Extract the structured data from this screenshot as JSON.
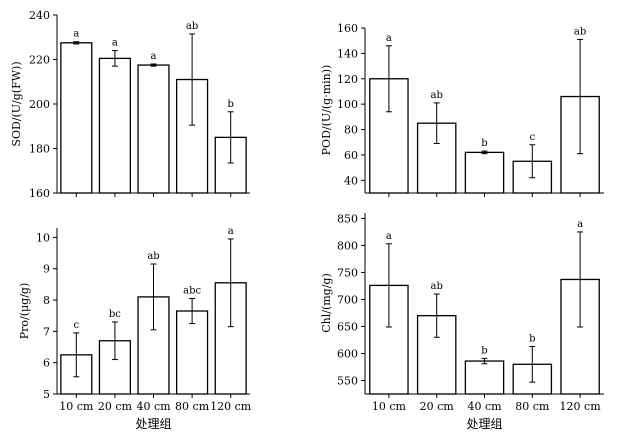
{
  "chart_data": [
    {
      "type": "bar",
      "ylabel": "SOD/(U/g(FW))",
      "xlabel": "",
      "categories": [
        "10 cm",
        "20 cm",
        "40 cm",
        "80 cm",
        "120 cm"
      ],
      "values": [
        227.5,
        220.5,
        217.5,
        211,
        185
      ],
      "errors": [
        0.5,
        3.5,
        0.5,
        20.5,
        11.5
      ],
      "letters": [
        "a",
        "a",
        "a",
        "ab",
        "b"
      ],
      "ylim": [
        160,
        240
      ],
      "yticks": [
        160,
        180,
        200,
        220,
        240
      ],
      "show_x_ticklabels": false
    },
    {
      "type": "bar",
      "ylabel": "POD/(U/(g·min))",
      "xlabel": "",
      "categories": [
        "10 cm",
        "20 cm",
        "40 cm",
        "80 cm",
        "120 cm"
      ],
      "values": [
        120,
        85,
        62,
        55,
        106
      ],
      "errors": [
        26,
        16,
        1,
        13,
        45
      ],
      "letters": [
        "a",
        "ab",
        "b",
        "c",
        "ab"
      ],
      "ylim": [
        30,
        160
      ],
      "yticks": [
        40,
        60,
        80,
        100,
        120,
        140,
        160
      ],
      "show_x_ticklabels": false
    },
    {
      "type": "bar",
      "ylabel": "Pro/(μg/g)",
      "xlabel": "处理组",
      "categories": [
        "10 cm",
        "20 cm",
        "40 cm",
        "80 cm",
        "120 cm"
      ],
      "values": [
        6.25,
        6.7,
        8.1,
        7.65,
        8.55
      ],
      "errors": [
        0.7,
        0.6,
        1.05,
        0.4,
        1.4
      ],
      "letters": [
        "c",
        "bc",
        "ab",
        "abc",
        "a"
      ],
      "ylim": [
        5,
        10.3
      ],
      "yticks": [
        5,
        6,
        7,
        8,
        9,
        10
      ],
      "show_x_ticklabels": true
    },
    {
      "type": "bar",
      "ylabel": "Chl/(mg/g)",
      "xlabel": "处理组",
      "categories": [
        "10 cm",
        "20 cm",
        "40 cm",
        "80 cm",
        "120 cm"
      ],
      "values": [
        726,
        670,
        586,
        580,
        737
      ],
      "errors": [
        77,
        40,
        5,
        33,
        88
      ],
      "letters": [
        "a",
        "ab",
        "b",
        "b",
        "a"
      ],
      "ylim": [
        525,
        860
      ],
      "yticks": [
        550,
        600,
        650,
        700,
        750,
        800,
        850
      ],
      "show_x_ticklabels": true
    }
  ]
}
